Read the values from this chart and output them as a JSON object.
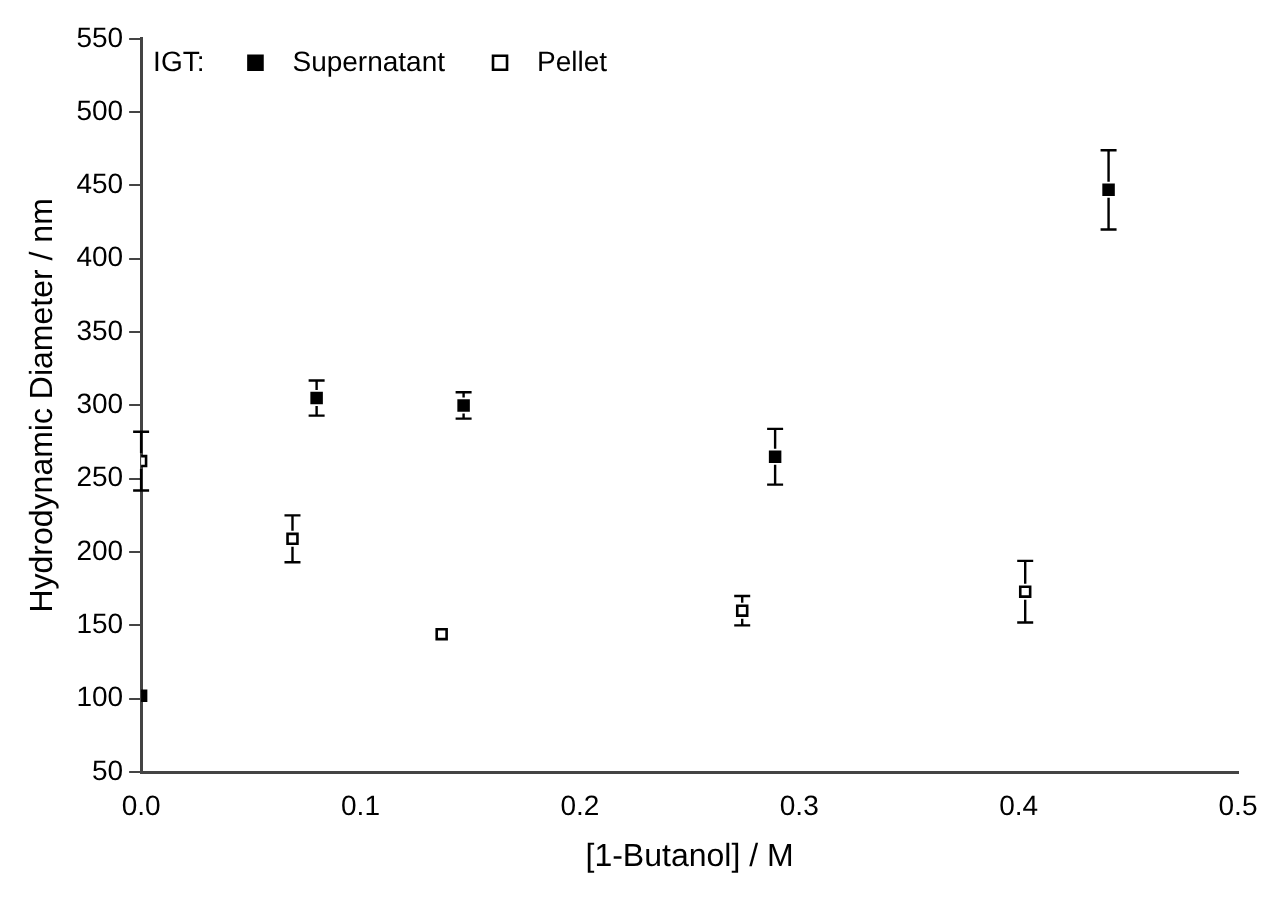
{
  "chart_data": {
    "type": "scatter",
    "xlabel": "[1-Butanol] / M",
    "ylabel": "Hydrodynamic Diameter / nm",
    "legend_title": "IGT:",
    "legend": "top left",
    "marker": "square",
    "grid": false,
    "xlim": [
      0,
      0.5
    ],
    "xticks": [
      "0.0",
      0.1,
      0.2,
      0.3,
      0.4,
      0.5
    ],
    "ylim": [
      50,
      550
    ],
    "yticks": [
      50,
      100,
      150,
      200,
      250,
      300,
      350,
      400,
      450,
      500,
      550
    ],
    "series": [
      {
        "name": "Supernatant",
        "color": "#000000",
        "x": [
          0,
          0.08,
          0.147,
          0.289,
          0.441
        ],
        "values": [
          102,
          305,
          300,
          265,
          447
        ],
        "errors": [
          null,
          12,
          9,
          19,
          27
        ]
      },
      {
        "name": "Pellet",
        "color": "#000000",
        "x": [
          0,
          0.069,
          0.137,
          0.274,
          0.403
        ],
        "values": [
          262,
          209,
          144,
          160,
          173
        ],
        "errors": [
          20,
          16,
          null,
          10,
          21
        ]
      }
    ]
  }
}
